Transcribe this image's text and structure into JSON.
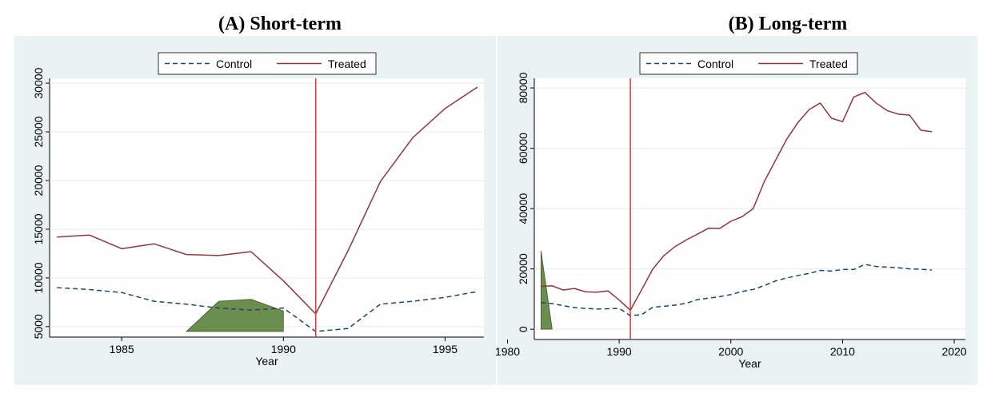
{
  "chart_data": [
    {
      "type": "line",
      "title": "(A)  Short-term",
      "x_label": "Year",
      "x": [
        1983,
        1984,
        1985,
        1986,
        1987,
        1988,
        1989,
        1990,
        1991,
        1992,
        1993,
        1994,
        1995,
        1996
      ],
      "series": [
        {
          "name": "Control",
          "color": "#1a476f",
          "dashed": true,
          "values": [
            9000,
            8800,
            8500,
            7600,
            7300,
            6900,
            6700,
            6900,
            4500,
            4800,
            7300,
            7600,
            8000,
            8600
          ]
        },
        {
          "name": "Treated",
          "color": "#90353b",
          "dashed": false,
          "values": [
            14200,
            14400,
            13000,
            13500,
            12400,
            12300,
            12700,
            9700,
            6300,
            12800,
            19900,
            24400,
            27400,
            29600
          ]
        }
      ],
      "shaded_area": {
        "color": "#6b8e4e",
        "x": [
          1987,
          1988,
          1989,
          1990,
          1990
        ],
        "y": [
          4500,
          7600,
          7800,
          6600,
          4500
        ]
      },
      "vline": {
        "x": 1991,
        "color": "#e8352b"
      },
      "xlim": [
        1982.77,
        1996.2
      ],
      "xticks": [
        1985,
        1990,
        1995
      ],
      "ylim": [
        3920,
        30500
      ],
      "yticks": [
        5000,
        10000,
        15000,
        20000,
        25000,
        30000
      ],
      "legend": "top"
    },
    {
      "type": "line",
      "title": "(B) Long-term",
      "x_label": "Year",
      "x": [
        1983,
        1984,
        1985,
        1986,
        1987,
        1988,
        1989,
        1990,
        1991,
        1992,
        1993,
        1994,
        1995,
        1996,
        1997,
        1998,
        1999,
        2000,
        2001,
        2002,
        2003,
        2004,
        2005,
        2006,
        2007,
        2008,
        2009,
        2010,
        2011,
        2012,
        2013,
        2014,
        2015,
        2016,
        2017,
        2018
      ],
      "series": [
        {
          "name": "Control",
          "color": "#1a476f",
          "dashed": true,
          "values": [
            8800,
            8500,
            7800,
            7200,
            6900,
            6700,
            6800,
            6900,
            4500,
            4800,
            7300,
            7600,
            8000,
            8600,
            9800,
            10300,
            10800,
            11500,
            12500,
            13200,
            14500,
            16000,
            17000,
            17800,
            18500,
            19500,
            19300,
            19800,
            19800,
            21500,
            20800,
            20600,
            20400,
            20000,
            19900,
            19600
          ]
        },
        {
          "name": "Treated",
          "color": "#90353b",
          "dashed": false,
          "values": [
            14200,
            14400,
            13000,
            13500,
            12400,
            12300,
            12700,
            9700,
            6300,
            13000,
            19900,
            24400,
            27400,
            29600,
            31500,
            33500,
            33400,
            35800,
            37300,
            40000,
            49000,
            56000,
            63000,
            68500,
            72800,
            75000,
            70000,
            68800,
            77000,
            78500,
            75000,
            72500,
            71300,
            71000,
            66000,
            65500
          ]
        }
      ],
      "shaded_area": {
        "color": "#6b8e4e",
        "x": [
          1983,
          1984,
          1983
        ],
        "y": [
          26000,
          0,
          0
        ]
      },
      "vline": {
        "x": 1991,
        "color": "#e8352b"
      },
      "xlim": [
        1982.4,
        2021
      ],
      "xticks": [
        1980,
        1990,
        2000,
        2010,
        2020
      ],
      "ylim": [
        -3400,
        83200
      ],
      "yticks": [
        0,
        20000,
        40000,
        60000,
        80000
      ],
      "legend": "top"
    }
  ]
}
